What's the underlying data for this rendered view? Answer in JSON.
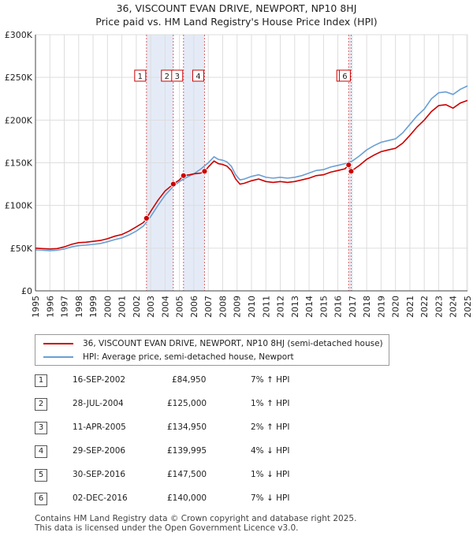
{
  "header": {
    "title": "36, VISCOUNT EVAN DRIVE, NEWPORT, NP10 8HJ",
    "subtitle": "Price paid vs. HM Land Registry's House Price Index (HPI)"
  },
  "legend": {
    "items": [
      {
        "label": "36, VISCOUNT EVAN DRIVE, NEWPORT, NP10 8HJ (semi-detached house)",
        "color": "#cc0000"
      },
      {
        "label": "HPI: Average price, semi-detached house, Newport",
        "color": "#6a9fd4"
      }
    ]
  },
  "colors": {
    "price": "#cc0000",
    "hpi": "#6a9fd4",
    "shade": "#dde6f5",
    "vline": "#cc0000",
    "grid": "#dddddd"
  },
  "sales": [
    {
      "id": "1",
      "date": "16-SEP-2002",
      "price": "£84,950",
      "hpi": "7% ↑ HPI"
    },
    {
      "id": "2",
      "date": "28-JUL-2004",
      "price": "£125,000",
      "hpi": "1% ↑ HPI"
    },
    {
      "id": "3",
      "date": "11-APR-2005",
      "price": "£134,950",
      "hpi": "2% ↑ HPI"
    },
    {
      "id": "4",
      "date": "29-SEP-2006",
      "price": "£139,995",
      "hpi": "4% ↓ HPI"
    },
    {
      "id": "5",
      "date": "30-SEP-2016",
      "price": "£147,500",
      "hpi": "1% ↓ HPI"
    },
    {
      "id": "6",
      "date": "02-DEC-2016",
      "price": "£140,000",
      "hpi": "7% ↓ HPI"
    }
  ],
  "footer": {
    "line1": "Contains HM Land Registry data © Crown copyright and database right 2025.",
    "line2": "This data is licensed under the Open Government Licence v3.0."
  },
  "chart_data": {
    "type": "line",
    "xlim": [
      1995,
      2025
    ],
    "ylim": [
      0,
      300000
    ],
    "x_ticks": [
      "1995",
      "1996",
      "1997",
      "1998",
      "1999",
      "2000",
      "2001",
      "2002",
      "2003",
      "2004",
      "2005",
      "2006",
      "2007",
      "2008",
      "2009",
      "2010",
      "2011",
      "2012",
      "2013",
      "2014",
      "2015",
      "2016",
      "2017",
      "2018",
      "2019",
      "2020",
      "2021",
      "2022",
      "2023",
      "2024",
      "2025"
    ],
    "y_ticks": [
      {
        "value": 0,
        "label": "£0"
      },
      {
        "value": 50000,
        "label": "£50K"
      },
      {
        "value": 100000,
        "label": "£100K"
      },
      {
        "value": 150000,
        "label": "£150K"
      },
      {
        "value": 200000,
        "label": "£200K"
      },
      {
        "value": 250000,
        "label": "£250K"
      },
      {
        "value": 300000,
        "label": "£300K"
      }
    ],
    "grid": true,
    "legend_position": "below",
    "markers": [
      {
        "label": "1",
        "x": 2002.71,
        "y": 84950
      },
      {
        "label": "2",
        "x": 2004.57,
        "y": 125000
      },
      {
        "label": "3",
        "x": 2005.28,
        "y": 134950
      },
      {
        "label": "4",
        "x": 2006.74,
        "y": 139995
      },
      {
        "label": "5",
        "x": 2016.75,
        "y": 147500
      },
      {
        "label": "6",
        "x": 2016.92,
        "y": 140000
      }
    ],
    "series": [
      {
        "name": "HPI: Average price, semi-detached house, Newport",
        "points": [
          [
            1995.0,
            48000
          ],
          [
            1995.5,
            47500
          ],
          [
            1996.0,
            47000
          ],
          [
            1996.5,
            47500
          ],
          [
            1997.0,
            49000
          ],
          [
            1997.5,
            51500
          ],
          [
            1998.0,
            53000
          ],
          [
            1998.5,
            53500
          ],
          [
            1999.0,
            54500
          ],
          [
            1999.5,
            55500
          ],
          [
            2000.0,
            57500
          ],
          [
            2000.5,
            60000
          ],
          [
            2001.0,
            62000
          ],
          [
            2001.5,
            65500
          ],
          [
            2002.0,
            70000
          ],
          [
            2002.5,
            76000
          ],
          [
            2003.0,
            87000
          ],
          [
            2003.5,
            100000
          ],
          [
            2004.0,
            112000
          ],
          [
            2004.5,
            121000
          ],
          [
            2005.0,
            128000
          ],
          [
            2005.5,
            133000
          ],
          [
            2006.0,
            137000
          ],
          [
            2006.5,
            143000
          ],
          [
            2007.0,
            150000
          ],
          [
            2007.4,
            157000
          ],
          [
            2007.7,
            154000
          ],
          [
            2008.0,
            153000
          ],
          [
            2008.3,
            151000
          ],
          [
            2008.6,
            146000
          ],
          [
            2008.9,
            136000
          ],
          [
            2009.2,
            130000
          ],
          [
            2009.5,
            131000
          ],
          [
            2010.0,
            134000
          ],
          [
            2010.5,
            136000
          ],
          [
            2011.0,
            133000
          ],
          [
            2011.5,
            132000
          ],
          [
            2012.0,
            133000
          ],
          [
            2012.5,
            132000
          ],
          [
            2013.0,
            133000
          ],
          [
            2013.5,
            135000
          ],
          [
            2014.0,
            138000
          ],
          [
            2014.5,
            141000
          ],
          [
            2015.0,
            142000
          ],
          [
            2015.5,
            145000
          ],
          [
            2016.0,
            147000
          ],
          [
            2016.5,
            149000
          ],
          [
            2017.0,
            152000
          ],
          [
            2017.5,
            158000
          ],
          [
            2018.0,
            165000
          ],
          [
            2018.5,
            170000
          ],
          [
            2019.0,
            174000
          ],
          [
            2019.5,
            176000
          ],
          [
            2020.0,
            178000
          ],
          [
            2020.5,
            185000
          ],
          [
            2021.0,
            195000
          ],
          [
            2021.5,
            205000
          ],
          [
            2022.0,
            213000
          ],
          [
            2022.5,
            225000
          ],
          [
            2023.0,
            232000
          ],
          [
            2023.5,
            233000
          ],
          [
            2024.0,
            230000
          ],
          [
            2024.5,
            236000
          ],
          [
            2025.0,
            240000
          ]
        ]
      },
      {
        "name": "36, VISCOUNT EVAN DRIVE, NEWPORT, NP10 8HJ (semi-detached house)",
        "points": [
          [
            1995.0,
            50000
          ],
          [
            1995.5,
            49500
          ],
          [
            1996.0,
            49000
          ],
          [
            1996.5,
            49500
          ],
          [
            1997.0,
            51500
          ],
          [
            1997.5,
            54500
          ],
          [
            1998.0,
            56500
          ],
          [
            1998.5,
            57000
          ],
          [
            1999.0,
            58000
          ],
          [
            1999.5,
            59000
          ],
          [
            2000.0,
            61000
          ],
          [
            2000.5,
            64000
          ],
          [
            2001.0,
            66000
          ],
          [
            2001.5,
            70000
          ],
          [
            2002.0,
            75000
          ],
          [
            2002.5,
            80000
          ],
          [
            2002.71,
            84950
          ],
          [
            2003.0,
            93000
          ],
          [
            2003.5,
            106000
          ],
          [
            2004.0,
            117000
          ],
          [
            2004.57,
            125000
          ],
          [
            2005.0,
            130000
          ],
          [
            2005.28,
            134950
          ],
          [
            2005.7,
            136000
          ],
          [
            2006.0,
            137000
          ],
          [
            2006.5,
            138000
          ],
          [
            2006.74,
            139995
          ],
          [
            2007.0,
            145000
          ],
          [
            2007.4,
            152000
          ],
          [
            2007.7,
            149000
          ],
          [
            2008.0,
            148000
          ],
          [
            2008.3,
            146000
          ],
          [
            2008.6,
            141000
          ],
          [
            2008.9,
            131000
          ],
          [
            2009.2,
            125000
          ],
          [
            2009.5,
            126000
          ],
          [
            2010.0,
            129000
          ],
          [
            2010.5,
            131000
          ],
          [
            2011.0,
            128000
          ],
          [
            2011.5,
            127000
          ],
          [
            2012.0,
            128000
          ],
          [
            2012.5,
            127000
          ],
          [
            2013.0,
            128000
          ],
          [
            2013.5,
            130000
          ],
          [
            2014.0,
            132000
          ],
          [
            2014.5,
            135000
          ],
          [
            2015.0,
            136000
          ],
          [
            2015.5,
            139000
          ],
          [
            2016.0,
            141000
          ],
          [
            2016.5,
            143000
          ],
          [
            2016.75,
            147500
          ],
          [
            2016.92,
            140000
          ],
          [
            2017.5,
            147000
          ],
          [
            2018.0,
            154000
          ],
          [
            2018.5,
            159000
          ],
          [
            2019.0,
            163000
          ],
          [
            2019.5,
            165000
          ],
          [
            2020.0,
            167000
          ],
          [
            2020.5,
            173000
          ],
          [
            2021.0,
            182000
          ],
          [
            2021.5,
            192000
          ],
          [
            2022.0,
            200000
          ],
          [
            2022.5,
            210000
          ],
          [
            2023.0,
            217000
          ],
          [
            2023.5,
            218000
          ],
          [
            2024.0,
            214000
          ],
          [
            2024.5,
            220000
          ],
          [
            2025.0,
            223000
          ]
        ]
      }
    ]
  }
}
